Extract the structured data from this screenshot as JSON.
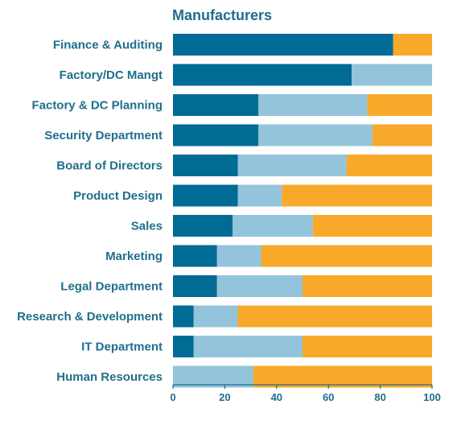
{
  "chart_data": {
    "type": "bar",
    "orientation": "horizontal",
    "stacked": true,
    "title": "Manufacturers",
    "categories": [
      "Finance & Auditing",
      "Factory/DC Mangt",
      "Factory & DC Planning",
      "Security Department",
      "Board of Directors",
      "Product Design",
      "Sales",
      "Marketing",
      "Legal Department",
      "Research & Development",
      "IT Department",
      "Human Resources"
    ],
    "series": [
      {
        "color": "#006b94",
        "values": [
          85,
          69,
          33,
          33,
          25,
          25,
          23,
          17,
          17,
          8,
          8,
          0
        ]
      },
      {
        "color": "#93c4db",
        "values": [
          0,
          31,
          42,
          44,
          42,
          17,
          31,
          17,
          33,
          17,
          42,
          31
        ]
      },
      {
        "color": "#f8a92a",
        "values": [
          15,
          0,
          25,
          23,
          33,
          58,
          46,
          66,
          50,
          75,
          50,
          69
        ]
      }
    ],
    "xlim": [
      0,
      100
    ],
    "xticks": [
      0,
      20,
      40,
      60,
      80,
      100
    ],
    "grid": false,
    "legend": "none"
  }
}
